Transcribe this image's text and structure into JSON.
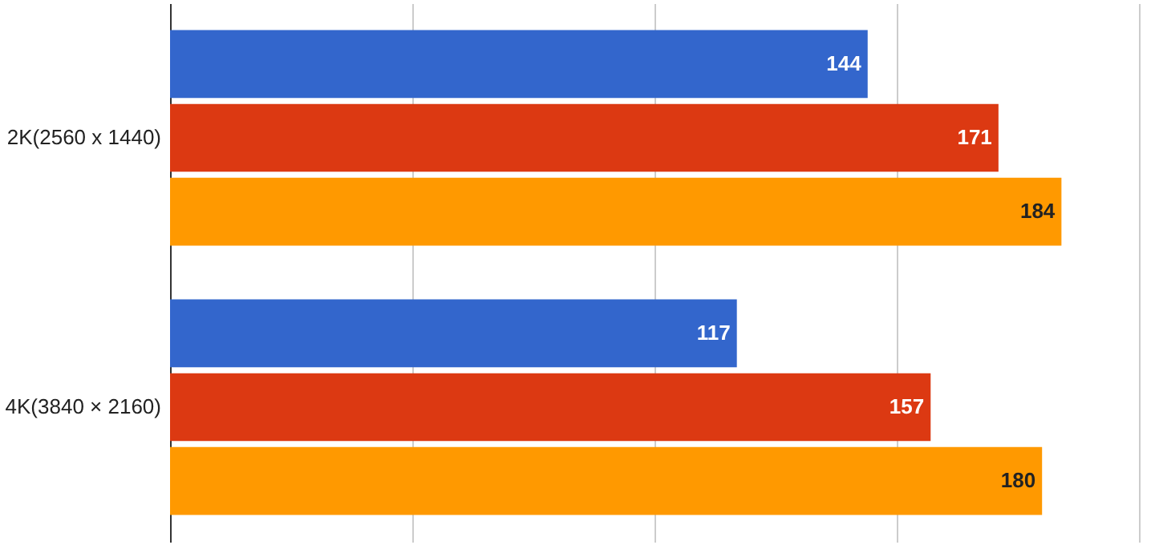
{
  "chart_data": {
    "type": "bar",
    "orientation": "horizontal",
    "categories": [
      "2K(2560 x 1440)",
      "4K(3840 × 2160)"
    ],
    "series": [
      {
        "color": "#3366cc",
        "values": [
          144,
          117
        ]
      },
      {
        "color": "#dc3912",
        "values": [
          171,
          157
        ]
      },
      {
        "color": "#ff9900",
        "values": [
          184,
          180
        ]
      }
    ],
    "xlim": [
      0,
      200
    ],
    "xticks": [
      {
        "value": 0,
        "label": null
      },
      {
        "value": 50,
        "label": null
      },
      {
        "value": 100,
        "label": null
      },
      {
        "value": 150,
        "label": null
      },
      {
        "value": 200,
        "label": null
      }
    ],
    "tick_labels": "y",
    "grid": "x",
    "data_labels": true,
    "legend": false
  }
}
